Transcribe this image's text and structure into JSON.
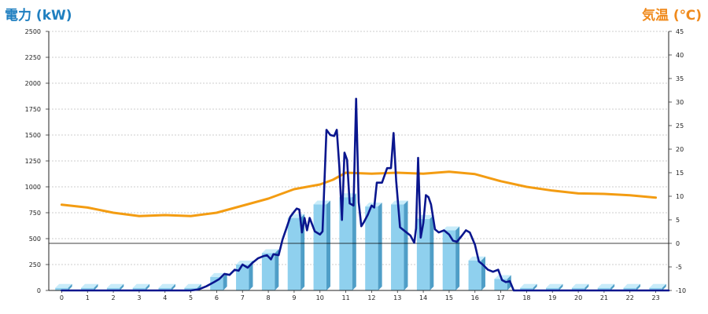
{
  "chart_data": {
    "type": "bar",
    "y_left_label": "電力 (kW)",
    "y_right_label": "気温 (℃)",
    "x_ticks": [
      "0",
      "1",
      "2",
      "3",
      "4",
      "5",
      "6",
      "7",
      "8",
      "9",
      "10",
      "11",
      "12",
      "13",
      "14",
      "15",
      "16",
      "17",
      "18",
      "19",
      "20",
      "21",
      "22",
      "23"
    ],
    "y_left_ticks": [
      "0",
      "250",
      "500",
      "750",
      "1000",
      "1250",
      "1500",
      "1750",
      "2000",
      "2250",
      "2500"
    ],
    "y_right_ticks": [
      "-10",
      "-5",
      "0",
      "5",
      "10",
      "15",
      "20",
      "25",
      "30",
      "35",
      "40",
      "45"
    ],
    "y_left_lim": [
      0,
      2500
    ],
    "y_right_lim": [
      -10,
      45
    ],
    "grid": true,
    "colors": {
      "bar_front": "#8fd0ee",
      "bar_side": "#4f9ec7",
      "bar_top": "#c8ecfa",
      "power_line": "#0a168e",
      "temp_line": "#f39c12",
      "title_left": "#1f7fc0",
      "title_right": "#f08a1c",
      "zero_line": "#000000"
    },
    "bars": {
      "categories": [
        0,
        1,
        2,
        3,
        4,
        5,
        6,
        7,
        8,
        9,
        10,
        11,
        12,
        13,
        14,
        15,
        16,
        17,
        18,
        19,
        20,
        21,
        22,
        23
      ],
      "values": [
        25,
        25,
        25,
        25,
        25,
        25,
        130,
        250,
        360,
        700,
        830,
        900,
        810,
        830,
        690,
        580,
        290,
        110,
        25,
        25,
        25,
        25,
        25,
        25
      ]
    },
    "power_series": {
      "x": [
        0,
        5.0,
        5.3,
        5.6,
        5.9,
        6.1,
        6.3,
        6.5,
        6.7,
        6.85,
        7.0,
        7.2,
        7.4,
        7.6,
        7.8,
        7.95,
        8.1,
        8.2,
        8.4,
        8.55,
        8.7,
        8.85,
        9.0,
        9.1,
        9.2,
        9.3,
        9.4,
        9.5,
        9.6,
        9.8,
        10.0,
        10.1,
        10.25,
        10.4,
        10.55,
        10.65,
        10.75,
        10.85,
        10.95,
        11.05,
        11.15,
        11.3,
        11.4,
        11.5,
        11.6,
        11.7,
        11.85,
        12.0,
        12.1,
        12.2,
        12.4,
        12.6,
        12.75,
        12.85,
        12.95,
        13.1,
        13.3,
        13.5,
        13.65,
        13.72,
        13.8,
        13.9,
        14.0,
        14.1,
        14.2,
        14.3,
        14.45,
        14.6,
        14.8,
        15.0,
        15.15,
        15.3,
        15.5,
        15.65,
        15.8,
        16.0,
        16.15,
        16.3,
        16.5,
        16.7,
        16.9,
        17.05,
        17.2,
        17.35,
        17.5,
        23.5
      ],
      "y": [
        0,
        0,
        10,
        40,
        80,
        110,
        160,
        150,
        200,
        190,
        250,
        220,
        270,
        310,
        330,
        340,
        300,
        350,
        340,
        490,
        600,
        710,
        760,
        790,
        780,
        560,
        700,
        580,
        700,
        570,
        540,
        570,
        1550,
        1500,
        1490,
        1550,
        1190,
        680,
        1330,
        1260,
        840,
        820,
        1850,
        850,
        620,
        660,
        730,
        820,
        800,
        1040,
        1040,
        1180,
        1180,
        1520,
        1060,
        610,
        570,
        530,
        460,
        600,
        1280,
        510,
        650,
        920,
        900,
        830,
        590,
        560,
        580,
        540,
        480,
        470,
        530,
        580,
        560,
        440,
        280,
        250,
        200,
        180,
        200,
        100,
        80,
        90,
        0,
        0
      ]
    },
    "temp_series": {
      "x": [
        0,
        1,
        2,
        3,
        4,
        5,
        6,
        7,
        8,
        9,
        10,
        10.5,
        11,
        12,
        13,
        14,
        15,
        16,
        17,
        18,
        19,
        20,
        21,
        22,
        23
      ],
      "y": [
        8.2,
        7.6,
        6.5,
        5.8,
        6.0,
        5.8,
        6.5,
        8.0,
        9.5,
        11.5,
        12.5,
        13.5,
        15.0,
        14.8,
        15.0,
        14.8,
        15.2,
        14.7,
        13.2,
        12.0,
        11.2,
        10.6,
        10.5,
        10.2,
        9.7
      ]
    }
  }
}
